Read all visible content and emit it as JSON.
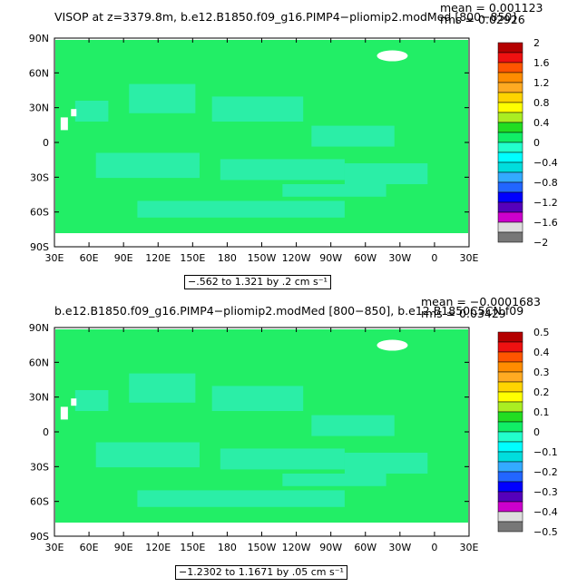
{
  "chart_data": [
    {
      "type": "heatmap",
      "title": "VISOP at z=3379.8m, b.e12.B1850.f09_g16.PIMP4−pliomip2.modMed [800−850]",
      "stats": {
        "mean": "mean = 0.001123",
        "rms": "rms = 0.02926"
      },
      "x_ticks": [
        "30E",
        "60E",
        "90E",
        "120E",
        "150E",
        "180",
        "150W",
        "120W",
        "90W",
        "60W",
        "30W",
        "0",
        "30E"
      ],
      "y_ticks": [
        "90N",
        "60N",
        "30N",
        "0",
        "30S",
        "60S",
        "90S"
      ],
      "range_label": "−.562 to 1.321 by .2 cm s⁻¹",
      "colorbar": {
        "levels": [
          "2",
          "1.6",
          "1.2",
          "0.8",
          "0.4",
          "0",
          "−0.4",
          "−0.8",
          "−1.2",
          "−1.6",
          "−2"
        ],
        "colors": [
          "#b40000",
          "#ee1111",
          "#ff5500",
          "#ff8c00",
          "#ffaa22",
          "#ffd400",
          "#ffff00",
          "#aaee22",
          "#22dd22",
          "#11ee66",
          "#22ffcc",
          "#00ffff",
          "#00dddd",
          "#33aaff",
          "#2266ff",
          "#0000ff",
          "#5500bb",
          "#cc00cc",
          "#dddddd",
          "#777777"
        ]
      },
      "dominant_color": "#22ee66"
    },
    {
      "type": "heatmap",
      "title": "b.e12.B1850.f09_g16.PIMP4−pliomip2.modMed [800−850], b.e12.B1850C5CN.f09",
      "stats": {
        "mean": "mean = −0.0001683",
        "rms": "rms = 0.03429"
      },
      "x_ticks": [
        "30E",
        "60E",
        "90E",
        "120E",
        "150E",
        "180",
        "150W",
        "120W",
        "90W",
        "60W",
        "30W",
        "0",
        "30E"
      ],
      "y_ticks": [
        "90N",
        "60N",
        "30N",
        "0",
        "30S",
        "60S",
        "90S"
      ],
      "range_label": "−1.2302 to 1.1671 by .05 cm s⁻¹",
      "colorbar": {
        "levels": [
          "0.5",
          "0.4",
          "0.3",
          "0.2",
          "0.1",
          "0",
          "−0.1",
          "−0.2",
          "−0.3",
          "−0.4",
          "−0.5"
        ],
        "colors": [
          "#b40000",
          "#ee1111",
          "#ff5500",
          "#ff8c00",
          "#ffaa22",
          "#ffd400",
          "#ffff00",
          "#aaee22",
          "#22dd22",
          "#11ee66",
          "#22ffcc",
          "#00ffff",
          "#00dddd",
          "#33aaff",
          "#2266ff",
          "#0000ff",
          "#5500bb",
          "#cc00cc",
          "#dddddd",
          "#777777"
        ]
      },
      "dominant_color": "#22ee66"
    }
  ]
}
